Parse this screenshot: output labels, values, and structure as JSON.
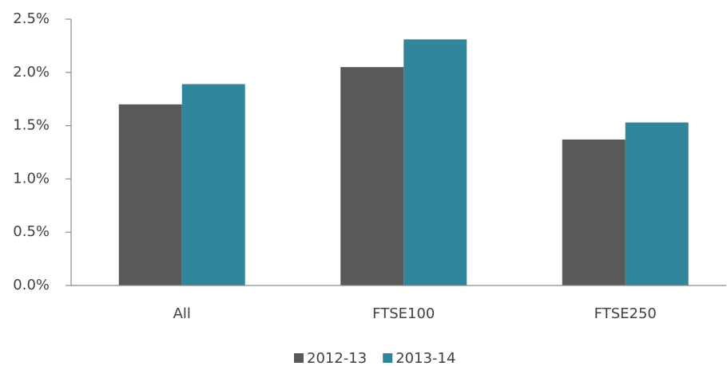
{
  "chart_data": {
    "type": "bar",
    "categories": [
      "All",
      "FTSE100",
      "FTSE250"
    ],
    "series": [
      {
        "name": "2012-13",
        "color": "#595959",
        "values": [
          1.7,
          2.05,
          1.37
        ]
      },
      {
        "name": "2013-14",
        "color": "#31869b",
        "values": [
          1.89,
          2.31,
          1.53
        ]
      }
    ],
    "ylim": [
      0,
      2.5
    ],
    "yticks": [
      {
        "value": 0,
        "label": "0.0%"
      },
      {
        "value": 0.5,
        "label": "0.5%"
      },
      {
        "value": 1.0,
        "label": "1.0%"
      },
      {
        "value": 1.5,
        "label": "1.5%"
      },
      {
        "value": 2.0,
        "label": "2.0%"
      },
      {
        "value": 2.5,
        "label": "2.5%"
      }
    ],
    "grid": false,
    "legend": "bottom"
  }
}
